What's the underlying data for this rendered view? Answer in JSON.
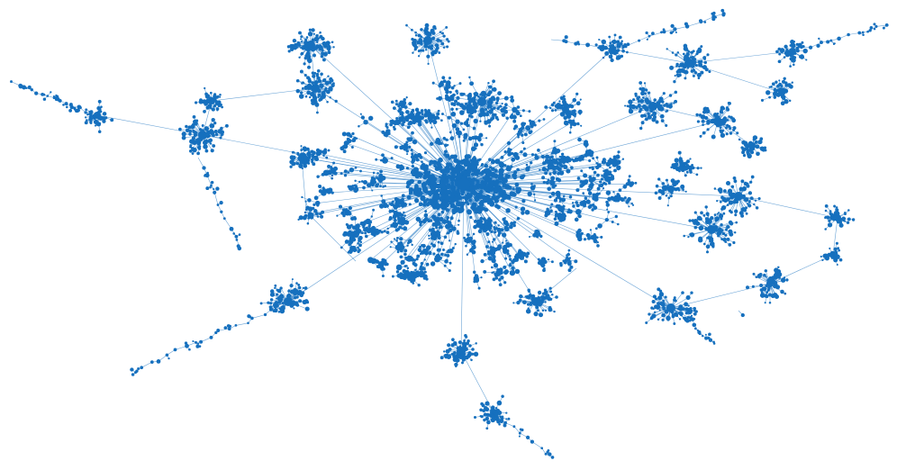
{
  "diagram": {
    "type": "network-graph",
    "layout": "force-directed",
    "labels_shown": false,
    "colors": {
      "node": "#1670be",
      "edge": "#3a86c8",
      "background": "#ffffff"
    },
    "structure": {
      "central_hub_count": 1,
      "satellite_cluster_count": 30,
      "branch_chain_count": 8
    }
  }
}
